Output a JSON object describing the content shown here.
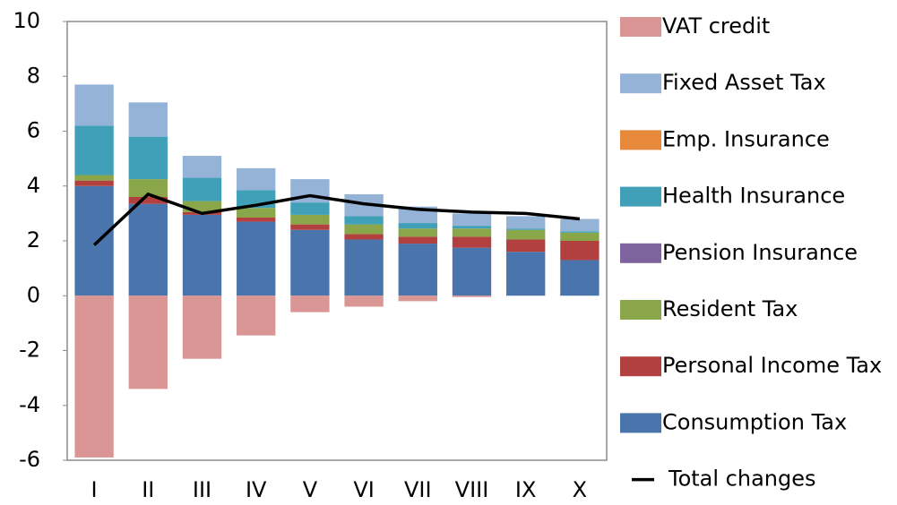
{
  "chart_data": {
    "type": "stacked-bar-line",
    "categories": [
      "I",
      "II",
      "III",
      "IV",
      "V",
      "VI",
      "VII",
      "VIII",
      "IX",
      "X"
    ],
    "series": [
      {
        "name": "Consumption Tax",
        "color": "#4a74ac",
        "values": [
          4.0,
          3.35,
          2.95,
          2.7,
          2.4,
          2.05,
          1.9,
          1.75,
          1.6,
          1.3
        ]
      },
      {
        "name": "Personal Income Tax",
        "color": "#b2403f",
        "values": [
          0.2,
          0.25,
          0.1,
          0.15,
          0.2,
          0.2,
          0.25,
          0.4,
          0.45,
          0.7
        ]
      },
      {
        "name": "Resident Tax",
        "color": "#8aa64a",
        "values": [
          0.2,
          0.65,
          0.4,
          0.35,
          0.35,
          0.35,
          0.3,
          0.3,
          0.35,
          0.3
        ]
      },
      {
        "name": "Pension Insurance",
        "color": "#7e649e",
        "values": [
          0,
          0,
          0,
          0,
          0,
          0,
          0,
          0,
          0,
          0
        ]
      },
      {
        "name": "Health Insurance",
        "color": "#3fa0b8",
        "values": [
          1.8,
          1.55,
          0.85,
          0.65,
          0.45,
          0.3,
          0.2,
          0.1,
          0.05,
          0.05
        ]
      },
      {
        "name": "Emp. Insurance",
        "color": "#e6893a",
        "values": [
          0,
          0,
          0,
          0,
          0,
          0,
          0,
          0,
          0,
          0
        ]
      },
      {
        "name": "Fixed Asset Tax",
        "color": "#95b3d7",
        "values": [
          1.5,
          1.25,
          0.8,
          0.8,
          0.85,
          0.8,
          0.6,
          0.45,
          0.45,
          0.45
        ]
      },
      {
        "name": "VAT credit",
        "color": "#d99694",
        "values": [
          -5.9,
          -3.4,
          -2.3,
          -1.45,
          -0.6,
          -0.4,
          -0.2,
          -0.05,
          0,
          0
        ]
      },
      {
        "name": "Total changes",
        "type": "line",
        "color": "#000000",
        "values": [
          1.85,
          3.7,
          3.0,
          3.3,
          3.65,
          3.35,
          3.15,
          3.05,
          3.0,
          2.8
        ]
      }
    ],
    "ylim": [
      -6,
      10
    ],
    "yticks": [
      -6,
      -4,
      -2,
      0,
      2,
      4,
      6,
      8,
      10
    ],
    "grid": false,
    "legend": "right"
  }
}
